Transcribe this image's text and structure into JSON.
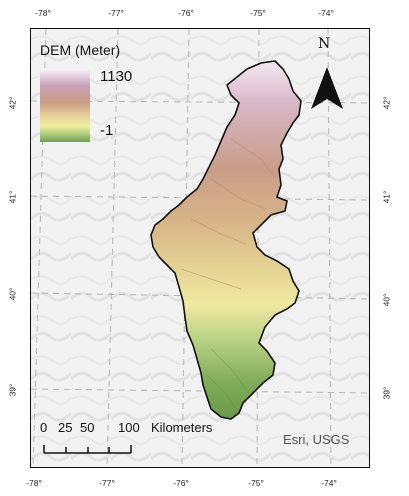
{
  "map": {
    "longitude_ticks": [
      "-78°",
      "-77°",
      "-76°",
      "-75°",
      "-74°"
    ],
    "latitude_ticks": [
      "42°",
      "41°",
      "40°",
      "39°"
    ]
  },
  "legend": {
    "title": "DEM (Meter)",
    "max_label": "1130",
    "min_label": "-1",
    "colors": [
      "#f6eef8",
      "#c9a0b6",
      "#c99e84",
      "#e7d39a",
      "#f2efa0",
      "#a8c978",
      "#6f9f4e"
    ]
  },
  "north_arrow": {
    "label": "N",
    "icon": "north-arrow-icon"
  },
  "scale_bar": {
    "labels": [
      "0",
      "25",
      "50",
      "100"
    ],
    "unit": "Kilometers"
  },
  "attribution": "Esri, USGS"
}
